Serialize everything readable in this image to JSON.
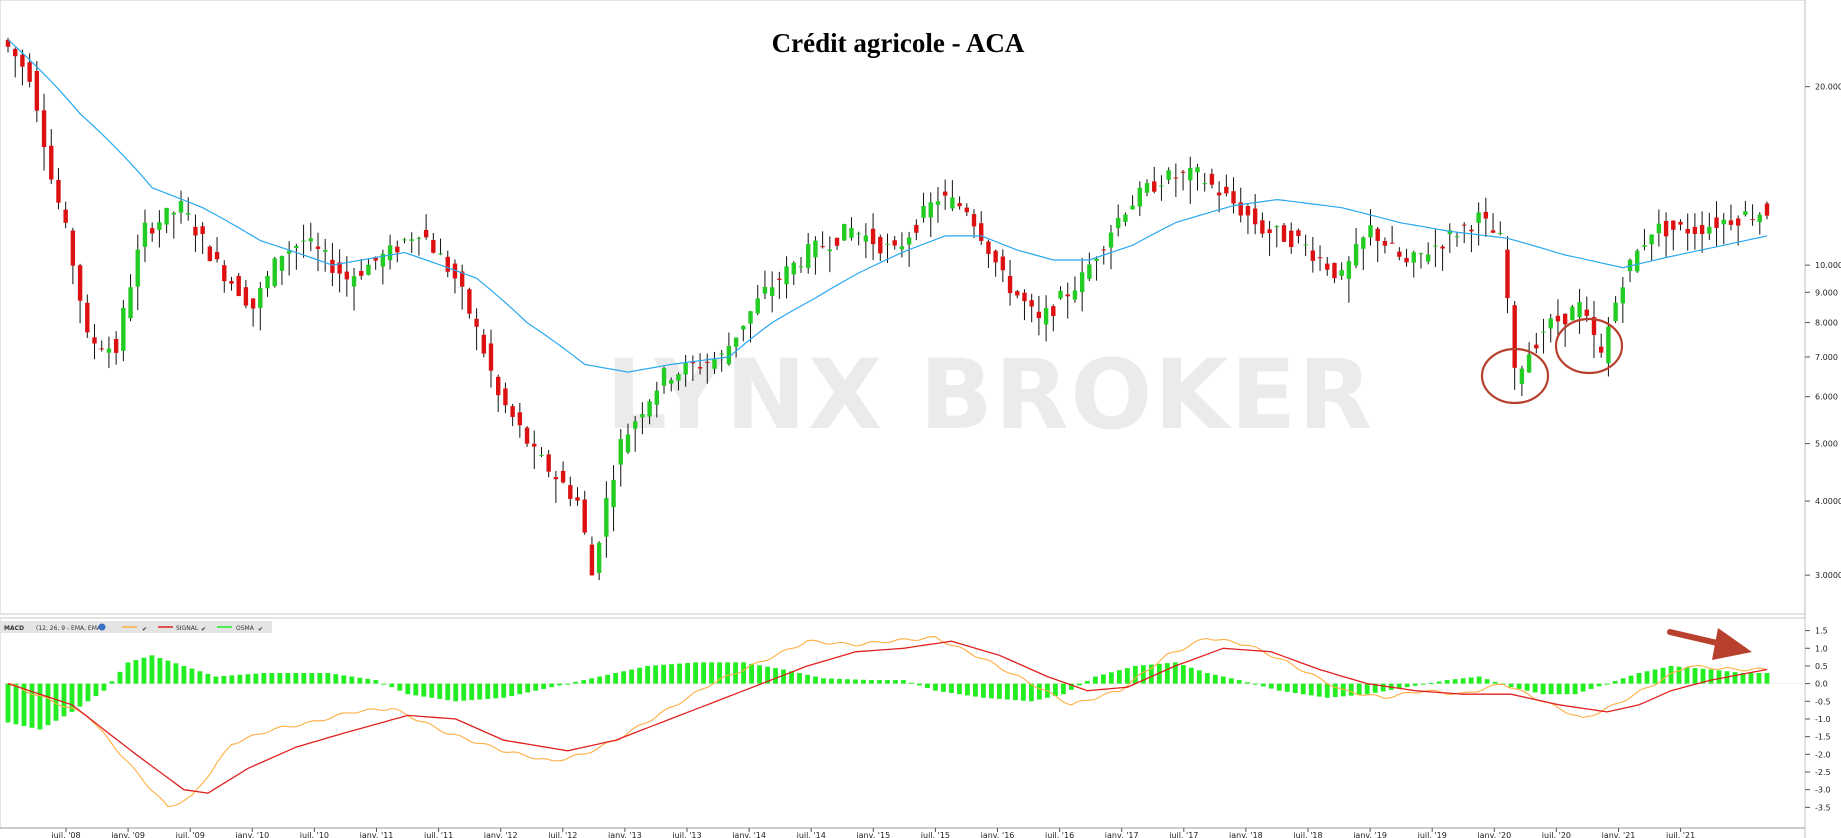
{
  "chart_data": [
    {
      "type": "candlestick",
      "title": "Crédit agricole - ACA",
      "watermark": "LYNX BROKER",
      "y_scale": "log",
      "ylim": [
        2.6,
        28
      ],
      "y_ticks": [
        {
          "value": 20,
          "label": "20.000"
        },
        {
          "value": 10,
          "label": "10.000"
        },
        {
          "value": 9,
          "label": "9.000"
        },
        {
          "value": 8,
          "label": "8.000"
        },
        {
          "value": 7,
          "label": "7.000"
        },
        {
          "value": 6,
          "label": "6.000"
        },
        {
          "value": 5,
          "label": "5.000"
        },
        {
          "value": 4,
          "label": "4.0000"
        },
        {
          "value": 3,
          "label": "3.0000"
        }
      ],
      "x_ticks": [
        "juil. '08",
        "janv. '09",
        "juil. '09",
        "janv. '10",
        "juil. '10",
        "janv. '11",
        "juil. '11",
        "janv. '12",
        "juil. '12",
        "janv. '13",
        "juil. '13",
        "janv. '14",
        "juil. '14",
        "janv. '15",
        "juil. '15",
        "janv. '16",
        "juil. '16",
        "janv. '17",
        "juil. '17",
        "janv. '18",
        "juil. '18",
        "janv. '19",
        "juil. '19",
        "janv. '20",
        "juil. '20",
        "janv. '21",
        "juil. '21"
      ],
      "price_keypoints": [
        [
          0,
          24.0
        ],
        [
          4,
          21.0
        ],
        [
          7,
          14.0
        ],
        [
          12,
          7.5
        ],
        [
          16,
          7.2
        ],
        [
          20,
          11.5
        ],
        [
          25,
          12.5
        ],
        [
          30,
          10.0
        ],
        [
          35,
          8.5
        ],
        [
          39,
          10.5
        ],
        [
          42,
          11.0
        ],
        [
          48,
          9.5
        ],
        [
          54,
          10.5
        ],
        [
          58,
          11.5
        ],
        [
          63,
          9.5
        ],
        [
          69,
          6.0
        ],
        [
          74,
          4.8
        ],
        [
          80,
          4.0
        ],
        [
          82,
          3.0
        ],
        [
          86,
          5.0
        ],
        [
          92,
          6.5
        ],
        [
          100,
          7.0
        ],
        [
          106,
          9.0
        ],
        [
          112,
          10.5
        ],
        [
          118,
          11.5
        ],
        [
          124,
          10.5
        ],
        [
          130,
          13.0
        ],
        [
          134,
          12.5
        ],
        [
          139,
          9.5
        ],
        [
          144,
          8.0
        ],
        [
          150,
          9.5
        ],
        [
          156,
          12.5
        ],
        [
          161,
          14.0
        ],
        [
          166,
          14.2
        ],
        [
          170,
          13.0
        ],
        [
          175,
          11.5
        ],
        [
          180,
          11.0
        ],
        [
          186,
          9.5
        ],
        [
          190,
          11.5
        ],
        [
          195,
          10.0
        ],
        [
          200,
          11.0
        ],
        [
          205,
          12.0
        ],
        [
          208,
          11.0
        ],
        [
          210,
          6.5
        ],
        [
          214,
          7.8
        ],
        [
          219,
          8.5
        ],
        [
          222,
          7.0
        ],
        [
          225,
          9.5
        ],
        [
          229,
          11.5
        ],
        [
          235,
          11.5
        ],
        [
          240,
          12.0
        ],
        [
          244,
          12.3
        ]
      ],
      "ma_keypoints": [
        [
          0,
          24.0
        ],
        [
          10,
          18.0
        ],
        [
          20,
          13.5
        ],
        [
          27,
          12.5
        ],
        [
          35,
          11.0
        ],
        [
          45,
          10.0
        ],
        [
          55,
          10.5
        ],
        [
          60,
          10.0
        ],
        [
          65,
          9.5
        ],
        [
          72,
          8.0
        ],
        [
          80,
          6.8
        ],
        [
          86,
          6.6
        ],
        [
          92,
          6.8
        ],
        [
          100,
          7.0
        ],
        [
          106,
          8.0
        ],
        [
          112,
          8.8
        ],
        [
          118,
          9.7
        ],
        [
          124,
          10.5
        ],
        [
          130,
          11.2
        ],
        [
          135,
          11.2
        ],
        [
          140,
          10.6
        ],
        [
          145,
          10.2
        ],
        [
          150,
          10.2
        ],
        [
          156,
          10.8
        ],
        [
          162,
          11.8
        ],
        [
          170,
          12.6
        ],
        [
          176,
          12.9
        ],
        [
          185,
          12.5
        ],
        [
          193,
          11.8
        ],
        [
          200,
          11.4
        ],
        [
          208,
          11.1
        ],
        [
          216,
          10.4
        ],
        [
          224,
          9.9
        ],
        [
          230,
          10.3
        ],
        [
          238,
          10.8
        ],
        [
          244,
          11.2
        ]
      ]
    },
    {
      "type": "macd",
      "legend": {
        "name": "MACD",
        "params": "(12, 26, 9 - EMA, EMA)",
        "signal_label": "SIGNAL",
        "osma_label": "OSMA"
      },
      "ylim": [
        -4.0,
        1.8
      ],
      "y_ticks": [
        {
          "value": 1.5,
          "label": "1.5"
        },
        {
          "value": 1.0,
          "label": "1.0"
        },
        {
          "value": 0.5,
          "label": "0.5"
        },
        {
          "value": 0.0,
          "label": "0.0"
        },
        {
          "value": -0.5,
          "label": "-0.5"
        },
        {
          "value": -1.0,
          "label": "-1.0"
        },
        {
          "value": -1.5,
          "label": "-1.5"
        },
        {
          "value": -2.0,
          "label": "-2.0"
        },
        {
          "value": -2.5,
          "label": "-2.5"
        },
        {
          "value": -3.0,
          "label": "-3.0"
        },
        {
          "value": -3.5,
          "label": "-3.5"
        }
      ],
      "macd_keypoints": [
        [
          0,
          0.0
        ],
        [
          10,
          -0.9
        ],
        [
          16,
          -2.5
        ],
        [
          20,
          -3.5
        ],
        [
          23,
          -3.2
        ],
        [
          28,
          -1.7
        ],
        [
          33,
          -1.3
        ],
        [
          38,
          -1.1
        ],
        [
          43,
          -0.8
        ],
        [
          48,
          -0.7
        ],
        [
          55,
          -1.4
        ],
        [
          62,
          -1.9
        ],
        [
          68,
          -2.2
        ],
        [
          72,
          -2.0
        ],
        [
          76,
          -1.6
        ],
        [
          82,
          -0.8
        ],
        [
          88,
          0.0
        ],
        [
          95,
          0.7
        ],
        [
          100,
          1.2
        ],
        [
          106,
          1.1
        ],
        [
          110,
          1.2
        ],
        [
          116,
          1.3
        ],
        [
          122,
          0.7
        ],
        [
          128,
          0.0
        ],
        [
          133,
          -0.6
        ],
        [
          139,
          -0.2
        ],
        [
          145,
          0.8
        ],
        [
          150,
          1.3
        ],
        [
          155,
          1.1
        ],
        [
          160,
          0.6
        ],
        [
          167,
          -0.2
        ],
        [
          172,
          -0.4
        ],
        [
          177,
          -0.2
        ],
        [
          182,
          -0.3
        ],
        [
          187,
          0.0
        ],
        [
          193,
          -0.6
        ],
        [
          197,
          -1.0
        ],
        [
          201,
          -0.6
        ],
        [
          206,
          0.0
        ],
        [
          210,
          0.5
        ],
        [
          216,
          0.4
        ],
        [
          220,
          0.4
        ]
      ],
      "signal_keypoints": [
        [
          0,
          0.0
        ],
        [
          8,
          -0.6
        ],
        [
          16,
          -2.0
        ],
        [
          22,
          -3.0
        ],
        [
          25,
          -3.1
        ],
        [
          30,
          -2.4
        ],
        [
          36,
          -1.8
        ],
        [
          42,
          -1.4
        ],
        [
          50,
          -0.9
        ],
        [
          56,
          -1.0
        ],
        [
          62,
          -1.6
        ],
        [
          70,
          -1.9
        ],
        [
          76,
          -1.6
        ],
        [
          84,
          -0.9
        ],
        [
          92,
          -0.2
        ],
        [
          100,
          0.5
        ],
        [
          106,
          0.9
        ],
        [
          112,
          1.0
        ],
        [
          118,
          1.2
        ],
        [
          124,
          0.8
        ],
        [
          130,
          0.2
        ],
        [
          135,
          -0.2
        ],
        [
          140,
          -0.1
        ],
        [
          146,
          0.5
        ],
        [
          152,
          1.0
        ],
        [
          158,
          0.9
        ],
        [
          164,
          0.4
        ],
        [
          170,
          0.0
        ],
        [
          176,
          -0.2
        ],
        [
          182,
          -0.3
        ],
        [
          188,
          -0.3
        ],
        [
          194,
          -0.6
        ],
        [
          200,
          -0.8
        ],
        [
          204,
          -0.6
        ],
        [
          208,
          -0.2
        ],
        [
          213,
          0.1
        ],
        [
          220,
          0.4
        ]
      ],
      "osma_keypoints": [
        [
          0,
          -1.1
        ],
        [
          4,
          -1.3
        ],
        [
          8,
          -0.8
        ],
        [
          12,
          -0.2
        ],
        [
          15,
          0.6
        ],
        [
          18,
          0.8
        ],
        [
          22,
          0.5
        ],
        [
          26,
          0.2
        ],
        [
          32,
          0.3
        ],
        [
          40,
          0.3
        ],
        [
          46,
          0.1
        ],
        [
          50,
          -0.3
        ],
        [
          56,
          -0.5
        ],
        [
          62,
          -0.4
        ],
        [
          68,
          -0.1
        ],
        [
          74,
          0.2
        ],
        [
          80,
          0.5
        ],
        [
          86,
          0.6
        ],
        [
          92,
          0.6
        ],
        [
          97,
          0.4
        ],
        [
          102,
          0.15
        ],
        [
          108,
          0.1
        ],
        [
          112,
          0.1
        ],
        [
          116,
          -0.2
        ],
        [
          122,
          -0.4
        ],
        [
          128,
          -0.5
        ],
        [
          132,
          -0.3
        ],
        [
          136,
          0.2
        ],
        [
          141,
          0.5
        ],
        [
          146,
          0.6
        ],
        [
          150,
          0.3
        ],
        [
          154,
          0.1
        ],
        [
          159,
          -0.2
        ],
        [
          165,
          -0.4
        ],
        [
          170,
          -0.3
        ],
        [
          175,
          -0.1
        ],
        [
          180,
          0.1
        ],
        [
          184,
          0.2
        ],
        [
          188,
          -0.1
        ],
        [
          192,
          -0.3
        ],
        [
          196,
          -0.3
        ],
        [
          200,
          0.0
        ],
        [
          204,
          0.3
        ],
        [
          208,
          0.5
        ],
        [
          213,
          0.4
        ],
        [
          217,
          0.3
        ],
        [
          220,
          0.3
        ]
      ]
    }
  ],
  "annotations": {
    "circle_color": "#b8402e",
    "arrow_color": "#b8402e"
  },
  "colors": {
    "up_candle": "#22cc22",
    "down_candle": "#dd1111",
    "ma_line": "#29a8f0",
    "macd_line": "#ffae42",
    "signal_line": "#e02020",
    "osma_bar": "#22ee22"
  }
}
